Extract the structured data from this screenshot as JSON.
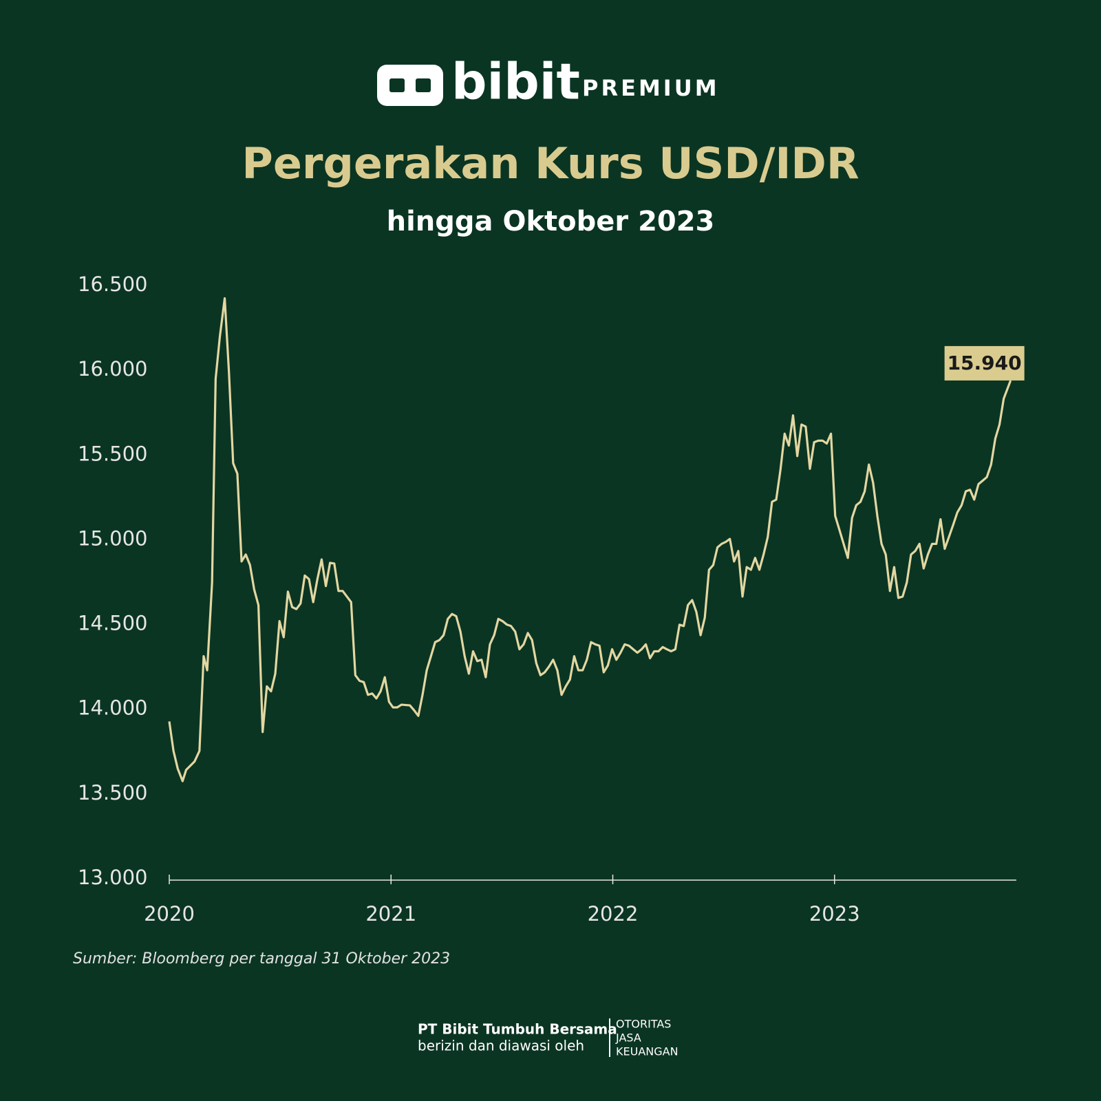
{
  "brand": {
    "name": "bibit",
    "tier": "PREMIUM"
  },
  "chart_data": {
    "type": "line",
    "title": "Pergerakan Kurs USD/IDR",
    "subtitle": "hingga Oktober 2023",
    "x": [
      2020,
      2020.019,
      2020.038,
      2020.06,
      2020.076,
      2020.114,
      2020.136,
      2020.155,
      2020.171,
      2020.193,
      2020.209,
      2020.228,
      2020.25,
      2020.269,
      2020.288,
      2020.307,
      2020.326,
      2020.345,
      2020.364,
      2020.383,
      2020.402,
      2020.421,
      2020.44,
      2020.459,
      2020.478,
      2020.497,
      2020.516,
      2020.535,
      2020.554,
      2020.573,
      2020.592,
      2020.611,
      2020.63,
      2020.649,
      2020.668,
      2020.687,
      2020.706,
      2020.725,
      2020.744,
      2020.763,
      2020.782,
      2020.801,
      2020.82,
      2020.839,
      2020.858,
      2020.877,
      2020.896,
      2020.915,
      2020.934,
      2020.953,
      2020.972,
      2020.991,
      2021.009,
      2021.028,
      2021.047,
      2021.085,
      2021.104,
      2021.123,
      2021.142,
      2021.161,
      2021.18,
      2021.199,
      2021.218,
      2021.237,
      2021.256,
      2021.275,
      2021.294,
      2021.313,
      2021.332,
      2021.351,
      2021.37,
      2021.389,
      2021.408,
      2021.427,
      2021.446,
      2021.465,
      2021.484,
      2021.503,
      2021.522,
      2021.541,
      2021.56,
      2021.579,
      2021.598,
      2021.617,
      2021.636,
      2021.655,
      2021.674,
      2021.693,
      2021.712,
      2021.731,
      2021.75,
      2021.769,
      2021.788,
      2021.807,
      2021.826,
      2021.845,
      2021.864,
      2021.883,
      2021.902,
      2021.921,
      2021.94,
      2021.959,
      2021.978,
      2021.997,
      2022.016,
      2022.035,
      2022.054,
      2022.073,
      2022.092,
      2022.111,
      2022.13,
      2022.149,
      2022.168,
      2022.187,
      2022.206,
      2022.225,
      2022.244,
      2022.263,
      2022.282,
      2022.301,
      2022.32,
      2022.339,
      2022.358,
      2022.377,
      2022.396,
      2022.415,
      2022.434,
      2022.453,
      2022.472,
      2022.491,
      2022.51,
      2022.528,
      2022.547,
      2022.566,
      2022.585,
      2022.604,
      2022.623,
      2022.642,
      2022.661,
      2022.68,
      2022.699,
      2022.718,
      2022.737,
      2022.756,
      2022.775,
      2022.794,
      2022.813,
      2022.832,
      2022.851,
      2022.87,
      2022.889,
      2022.908,
      2022.927,
      2022.946,
      2022.965,
      2022.984,
      2023.003,
      2023.022,
      2023.041,
      2023.06,
      2023.079,
      2023.098,
      2023.117,
      2023.136,
      2023.155,
      2023.174,
      2023.193,
      2023.212,
      2023.231,
      2023.25,
      2023.269,
      2023.288,
      2023.307,
      2023.326,
      2023.345,
      2023.364,
      2023.383,
      2023.402,
      2023.421,
      2023.44,
      2023.459,
      2023.478,
      2023.497,
      2023.516,
      2023.535,
      2023.554,
      2023.573,
      2023.592,
      2023.611,
      2023.63,
      2023.649,
      2023.668,
      2023.687,
      2023.706,
      2023.725,
      2023.744,
      2023.763,
      2023.794
    ],
    "series": [
      {
        "color": "#e3d7a2",
        "values": [
          13928,
          13754,
          13650,
          13576,
          13642,
          13692,
          13754,
          14313,
          14230,
          14748,
          15949,
          16198,
          16425,
          15991,
          15452,
          15390,
          14872,
          14913,
          14851,
          14706,
          14615,
          13866,
          14135,
          14106,
          14210,
          14520,
          14425,
          14694,
          14603,
          14591,
          14624,
          14789,
          14768,
          14632,
          14768,
          14884,
          14727,
          14864,
          14860,
          14698,
          14698,
          14665,
          14632,
          14201,
          14168,
          14160,
          14085,
          14093,
          14064,
          14106,
          14189,
          14044,
          14011,
          14011,
          14027,
          14023,
          13994,
          13961,
          14085,
          14230,
          14313,
          14396,
          14408,
          14437,
          14533,
          14562,
          14549,
          14458,
          14313,
          14210,
          14342,
          14284,
          14292,
          14189,
          14383,
          14437,
          14533,
          14520,
          14500,
          14491,
          14458,
          14354,
          14383,
          14450,
          14408,
          14272,
          14201,
          14218,
          14251,
          14292,
          14230,
          14085,
          14135,
          14176,
          14313,
          14230,
          14230,
          14292,
          14396,
          14383,
          14375,
          14218,
          14259,
          14354,
          14292,
          14334,
          14383,
          14375,
          14354,
          14334,
          14354,
          14383,
          14301,
          14342,
          14342,
          14367,
          14354,
          14342,
          14354,
          14499,
          14491,
          14615,
          14644,
          14574,
          14437,
          14541,
          14823,
          14851,
          14955,
          14976,
          14988,
          15005,
          14872,
          14934,
          14665,
          14839,
          14823,
          14893,
          14823,
          14913,
          15017,
          15224,
          15237,
          15411,
          15626,
          15556,
          15734,
          15494,
          15680,
          15668,
          15419,
          15576,
          15585,
          15585,
          15568,
          15626,
          15141,
          15059,
          14976,
          14893,
          15129,
          15204,
          15224,
          15286,
          15444,
          15336,
          15141,
          14976,
          14913,
          14698,
          14839,
          14657,
          14665,
          14748,
          14913,
          14934,
          14976,
          14831,
          14913,
          14976,
          14976,
          15121,
          14947,
          15017,
          15088,
          15162,
          15204,
          15286,
          15295,
          15237,
          15328,
          15349,
          15370,
          15444,
          15597,
          15680,
          15833,
          15940
        ]
      }
    ],
    "annotations": [
      {
        "x": 2023.794,
        "value": 15940,
        "label": "15.940",
        "color": "#d9cc8e"
      }
    ],
    "xlim": [
      2020,
      2023.82
    ],
    "xticks": [
      2020,
      2021,
      2022,
      2023
    ],
    "ylim": [
      13000,
      16500
    ],
    "yticks": [
      {
        "value": 13000,
        "label": "13.000"
      },
      {
        "value": 13500,
        "label": "13.500"
      },
      {
        "value": 14000,
        "label": "14.000"
      },
      {
        "value": 14500,
        "label": "14.500"
      },
      {
        "value": 15000,
        "label": "15.000"
      },
      {
        "value": 15500,
        "label": "15.500"
      },
      {
        "value": 16000,
        "label": "16.000"
      },
      {
        "value": 16500,
        "label": "16.500"
      }
    ],
    "grid": false,
    "source": "Sumber: Bloomberg per tanggal 31 Oktober 2023"
  },
  "footer": {
    "company": "PT Bibit Tumbuh Bersama",
    "note": "berizin dan diawasi oleh",
    "regulator": [
      "OTORITAS",
      "JASA",
      "KEUANGAN"
    ]
  }
}
